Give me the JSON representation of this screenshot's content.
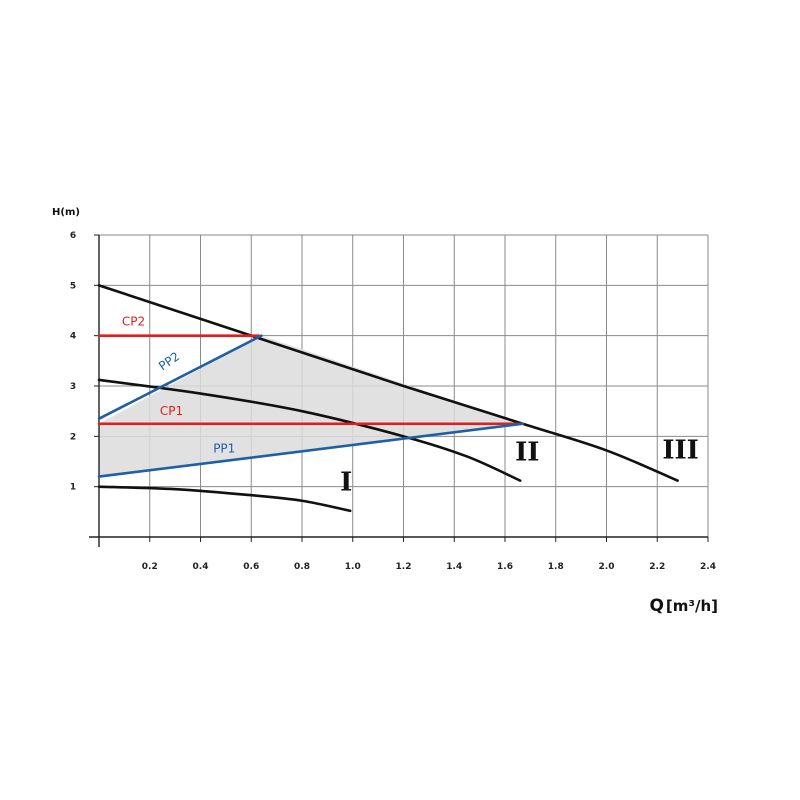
{
  "chart_data": {
    "type": "line",
    "title": "",
    "xlabel": "Q",
    "xunit": "[m³/h]",
    "ylabel": "H(m)",
    "xlim": [
      0,
      2.4
    ],
    "ylim": [
      0,
      6
    ],
    "x_ticks": [
      "0.2",
      "0.4",
      "0.6",
      "0.8",
      "1.0",
      "1.2",
      "1.4",
      "1.6",
      "1.8",
      "2.0",
      "2.2",
      "2.4"
    ],
    "y_ticks": [
      "1",
      "2",
      "3",
      "4",
      "5",
      "6"
    ],
    "grid": true,
    "shaded_region": {
      "points": [
        [
          0,
          2.25
        ],
        [
          0,
          1.2
        ],
        [
          1.67,
          2.25
        ],
        [
          0.64,
          4.0
        ]
      ],
      "color": "#dcdcdc"
    },
    "series": [
      {
        "name": "I",
        "color": "#111111",
        "points": [
          [
            0,
            1.0
          ],
          [
            0.3,
            0.95
          ],
          [
            0.6,
            0.83
          ],
          [
            0.8,
            0.72
          ],
          [
            0.99,
            0.52
          ]
        ],
        "label_at": [
          0.95,
          0.92
        ]
      },
      {
        "name": "II",
        "color": "#111111",
        "points": [
          [
            0,
            3.12
          ],
          [
            0.4,
            2.85
          ],
          [
            0.8,
            2.5
          ],
          [
            1.2,
            2.0
          ],
          [
            1.45,
            1.6
          ],
          [
            1.66,
            1.12
          ]
        ],
        "label_at": [
          1.64,
          1.52
        ]
      },
      {
        "name": "III",
        "color": "#111111",
        "points": [
          [
            0,
            5.0
          ],
          [
            0.6,
            4.0
          ],
          [
            1.2,
            3.0
          ],
          [
            1.67,
            2.25
          ],
          [
            2.0,
            1.72
          ],
          [
            2.28,
            1.12
          ]
        ],
        "label_at": [
          2.22,
          1.56
        ]
      },
      {
        "name": "CP2",
        "color": "#e31d1d",
        "points": [
          [
            0,
            4.0
          ],
          [
            0.63,
            4.0
          ]
        ],
        "label_at": [
          0.09,
          4.2
        ]
      },
      {
        "name": "CP1",
        "color": "#e31d1d",
        "points": [
          [
            0,
            2.25
          ],
          [
            1.67,
            2.25
          ]
        ],
        "label_at": [
          0.24,
          2.42
        ]
      },
      {
        "name": "PP2",
        "color": "#1f5fa6",
        "points": [
          [
            0,
            2.35
          ],
          [
            0.64,
            4.0
          ]
        ],
        "label_at": [
          0.25,
          3.3
        ]
      },
      {
        "name": "PP1",
        "color": "#1f5fa6",
        "points": [
          [
            0,
            1.2
          ],
          [
            1.67,
            2.25
          ]
        ],
        "label_at": [
          0.45,
          1.68
        ]
      }
    ]
  }
}
